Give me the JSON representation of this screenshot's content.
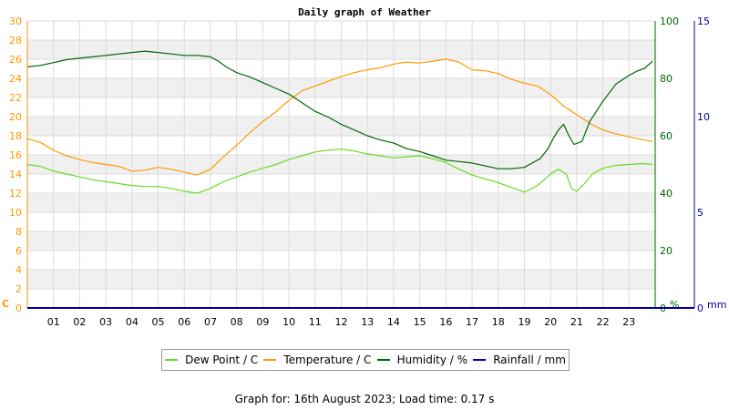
{
  "chart_data": {
    "type": "line",
    "title": "Daily graph of Weather",
    "x_ticks": [
      "01",
      "02",
      "03",
      "04",
      "05",
      "06",
      "07",
      "08",
      "09",
      "10",
      "11",
      "12",
      "13",
      "14",
      "15",
      "16",
      "17",
      "18",
      "19",
      "20",
      "21",
      "22",
      "23"
    ],
    "xlim": [
      0,
      24
    ],
    "axes": {
      "temp": {
        "label": "C",
        "ylim": [
          0,
          30
        ],
        "ticks": [
          0,
          2,
          4,
          6,
          8,
          10,
          12,
          14,
          16,
          18,
          20,
          22,
          24,
          26,
          28,
          30
        ],
        "color": "#ff9900"
      },
      "humidity": {
        "label": "%",
        "ylim": [
          0,
          100
        ],
        "ticks": [
          0,
          20,
          40,
          60,
          80,
          100
        ],
        "color": "#006600"
      },
      "rain": {
        "label": "mm",
        "ylim": [
          0,
          15
        ],
        "ticks": [
          0,
          5,
          10,
          15
        ],
        "color": "#000099"
      }
    },
    "grid": true,
    "legend_position": "bottom",
    "series": [
      {
        "name": "Dew Point / C",
        "color": "#66dd22",
        "axis": "temp",
        "x": [
          0,
          0.5,
          1,
          1.5,
          2,
          2.5,
          3,
          3.5,
          4,
          4.5,
          5,
          5.5,
          6,
          6.5,
          7,
          7.5,
          8,
          8.5,
          9,
          9.5,
          10,
          10.5,
          11,
          11.5,
          12,
          12.5,
          13,
          13.5,
          14,
          14.5,
          15,
          15.5,
          16,
          16.5,
          17,
          17.5,
          18,
          18.5,
          19,
          19.5,
          20,
          20.3,
          20.6,
          20.8,
          21,
          21.3,
          21.6,
          22,
          22.5,
          23,
          23.5,
          23.9
        ],
        "y": [
          15,
          14.8,
          14.3,
          14,
          13.7,
          13.4,
          13.2,
          13,
          12.8,
          12.7,
          12.7,
          12.5,
          12.2,
          12,
          12.5,
          13.2,
          13.7,
          14.2,
          14.6,
          15,
          15.5,
          15.9,
          16.3,
          16.5,
          16.6,
          16.4,
          16.1,
          15.9,
          15.7,
          15.8,
          15.9,
          15.6,
          15.2,
          14.5,
          13.9,
          13.5,
          13.1,
          12.6,
          12.1,
          12.8,
          14,
          14.5,
          14,
          12.5,
          12.2,
          13,
          14,
          14.6,
          14.9,
          15,
          15.1,
          15
        ]
      },
      {
        "name": "Temperature / C",
        "color": "#ff9900",
        "axis": "temp",
        "x": [
          0,
          0.5,
          1,
          1.5,
          2,
          2.5,
          3,
          3.5,
          4,
          4.5,
          5,
          5.5,
          6,
          6.5,
          7,
          7.5,
          8,
          8.5,
          9,
          9.5,
          10,
          10.5,
          11,
          11.5,
          12,
          12.5,
          13,
          13.5,
          14,
          14.5,
          15,
          15.5,
          16,
          16.5,
          17,
          17.5,
          18,
          18.5,
          19,
          19.5,
          20,
          20.5,
          21,
          21.5,
          22,
          22.5,
          23,
          23.5,
          23.9
        ],
        "y": [
          17.7,
          17.3,
          16.5,
          15.9,
          15.5,
          15.2,
          15,
          14.8,
          14.3,
          14.4,
          14.7,
          14.5,
          14.2,
          13.9,
          14.5,
          15.8,
          17,
          18.3,
          19.5,
          20.5,
          21.7,
          22.7,
          23.2,
          23.7,
          24.2,
          24.6,
          24.9,
          25.1,
          25.5,
          25.7,
          25.6,
          25.8,
          26,
          25.7,
          24.9,
          24.8,
          24.5,
          23.9,
          23.5,
          23.2,
          22.3,
          21.1,
          20.2,
          19.3,
          18.6,
          18.2,
          17.9,
          17.6,
          17.4
        ]
      },
      {
        "name": "Humidity / %",
        "color": "#006600",
        "axis": "humidity",
        "x": [
          0,
          0.5,
          1,
          1.5,
          2,
          2.5,
          3,
          3.5,
          4,
          4.5,
          5,
          5.5,
          6,
          6.5,
          7,
          7.3,
          7.6,
          8,
          8.5,
          9,
          9.5,
          10,
          10.5,
          11,
          11.5,
          12,
          12.5,
          13,
          13.5,
          14,
          14.5,
          15,
          15.5,
          16,
          16.5,
          17,
          17.5,
          18,
          18.5,
          19,
          19.3,
          19.6,
          19.9,
          20.1,
          20.3,
          20.5,
          20.7,
          20.9,
          21.2,
          21.5,
          22,
          22.5,
          23,
          23.3,
          23.6,
          23.9
        ],
        "y": [
          84,
          84.5,
          85.5,
          86.5,
          87,
          87.5,
          88,
          88.5,
          89,
          89.5,
          89,
          88.5,
          88,
          88,
          87.5,
          86,
          84,
          82,
          80.5,
          78.5,
          76.5,
          74.5,
          71.5,
          68.5,
          66.5,
          64,
          62,
          60,
          58.5,
          57.5,
          55.5,
          54.5,
          53,
          51.5,
          51,
          50.5,
          49.5,
          48.5,
          48.5,
          49,
          50.5,
          52,
          55.5,
          59,
          62,
          64,
          60,
          57,
          58,
          65,
          72,
          78,
          81,
          82.5,
          83.5,
          86
        ]
      },
      {
        "name": "Rainfall / mm",
        "color": "#000099",
        "axis": "rain",
        "x": [
          0,
          24
        ],
        "y": [
          0,
          0
        ]
      }
    ]
  },
  "footer": {
    "text": "Graph for: 16th August 2023; Load time: 0.17 s"
  }
}
